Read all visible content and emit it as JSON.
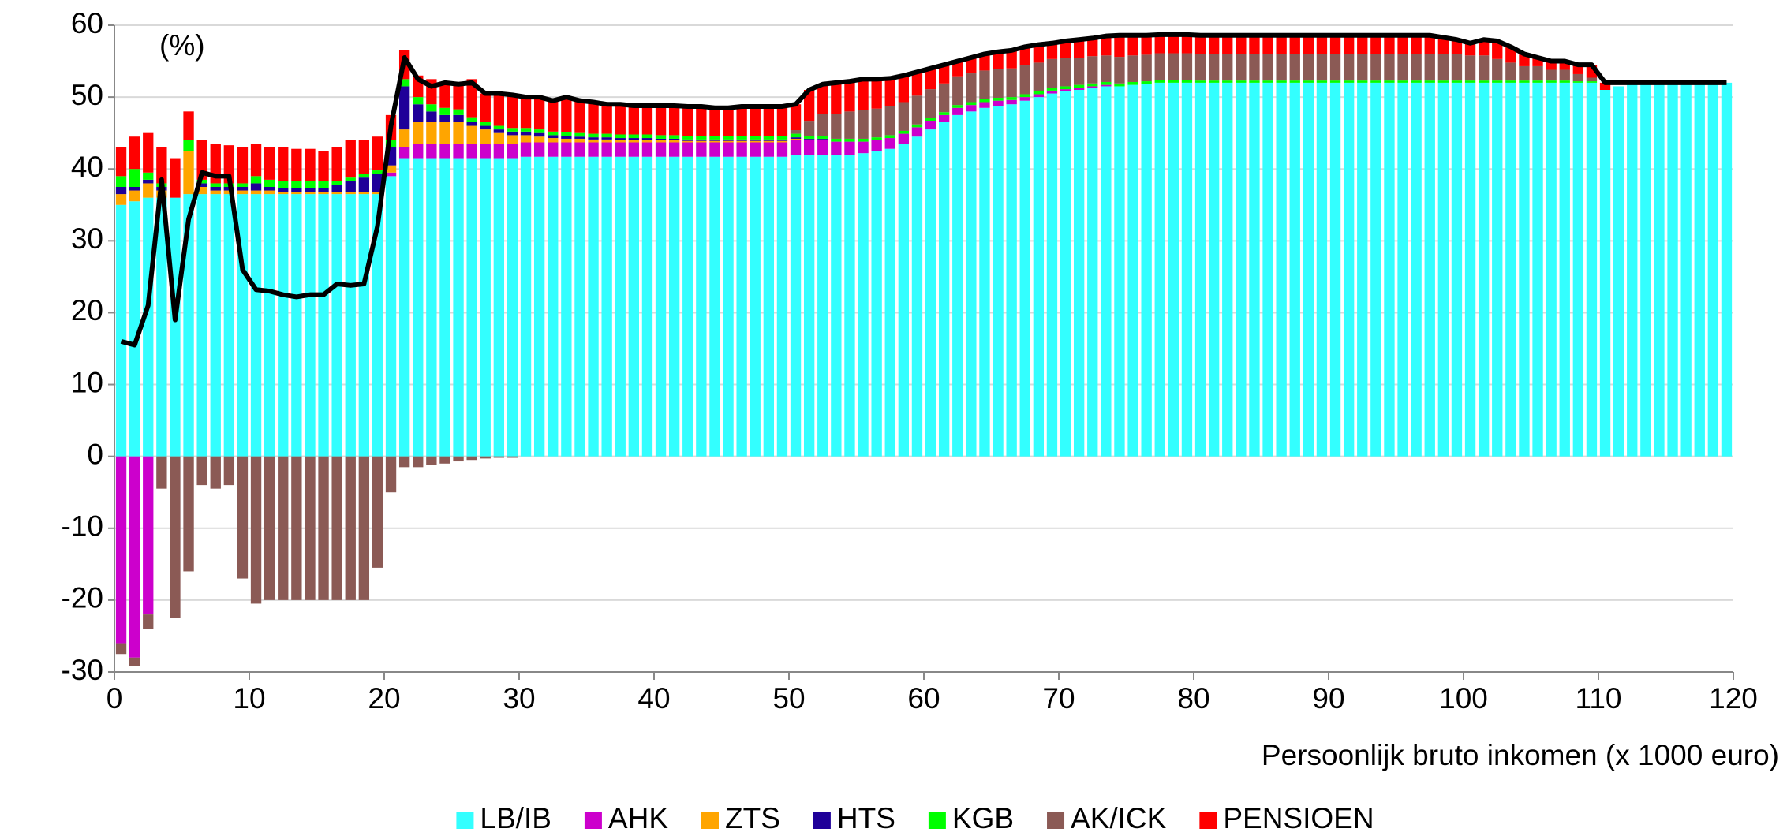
{
  "chart_data": {
    "type": "stacked_bar_line",
    "annotation": "(%)",
    "x_label": "Persoonlijk bruto inkomen (x 1000 euro)",
    "x": [
      0.5,
      1.5,
      2.5,
      3.5,
      4.5,
      5.5,
      6.5,
      7.5,
      8.5,
      9.5,
      10.5,
      11.5,
      12.5,
      13.5,
      14.5,
      15.5,
      16.5,
      17.5,
      18.5,
      19.5,
      20.5,
      21.5,
      22.5,
      23.5,
      24.5,
      25.5,
      26.5,
      27.5,
      28.5,
      29.5,
      30.5,
      31.5,
      32.5,
      33.5,
      34.5,
      35.5,
      36.5,
      37.5,
      38.5,
      39.5,
      40.5,
      41.5,
      42.5,
      43.5,
      44.5,
      45.5,
      46.5,
      47.5,
      48.5,
      49.5,
      50.5,
      51.5,
      52.5,
      53.5,
      54.5,
      55.5,
      56.5,
      57.5,
      58.5,
      59.5,
      60.5,
      61.5,
      62.5,
      63.5,
      64.5,
      65.5,
      66.5,
      67.5,
      68.5,
      69.5,
      70.5,
      71.5,
      72.5,
      73.5,
      74.5,
      75.5,
      76.5,
      77.5,
      78.5,
      79.5,
      80.5,
      81.5,
      82.5,
      83.5,
      84.5,
      85.5,
      86.5,
      87.5,
      88.5,
      89.5,
      90.5,
      91.5,
      92.5,
      93.5,
      94.5,
      95.5,
      96.5,
      97.5,
      98.5,
      99.5,
      100.5,
      101.5,
      102.5,
      103.5,
      104.5,
      105.5,
      106.5,
      107.5,
      108.5,
      109.5,
      110.5,
      111.5,
      112.5,
      113.5,
      114.5,
      115.5,
      116.5,
      117.5,
      118.5,
      119.5
    ],
    "series": [
      {
        "name": "LB/IB",
        "color": "#33ffff",
        "values": [
          35,
          35.5,
          36,
          36,
          36,
          36.5,
          36.5,
          36.5,
          36.5,
          36.5,
          36.5,
          36.5,
          36.5,
          36.5,
          36.5,
          36.5,
          36.5,
          36.5,
          36.5,
          36.5,
          39,
          41.5,
          41.5,
          41.5,
          41.5,
          41.5,
          41.5,
          41.5,
          41.5,
          41.5,
          41.7,
          41.7,
          41.7,
          41.7,
          41.7,
          41.7,
          41.7,
          41.7,
          41.7,
          41.7,
          41.7,
          41.7,
          41.7,
          41.7,
          41.7,
          41.7,
          41.7,
          41.7,
          41.7,
          41.7,
          42,
          42,
          42,
          42,
          42,
          42.2,
          42.5,
          42.8,
          43.5,
          44.5,
          45.5,
          46.5,
          47.5,
          48,
          48.5,
          48.8,
          49,
          49.5,
          50,
          50.5,
          50.8,
          51,
          51.3,
          51.5,
          51.5,
          51.7,
          51.8,
          52,
          52,
          52,
          52,
          52,
          52,
          52,
          52,
          52,
          52,
          52,
          52,
          52,
          52,
          52,
          52,
          52,
          52,
          52,
          52,
          52,
          52,
          52,
          52,
          52,
          52,
          52,
          52,
          52,
          52,
          52,
          52,
          52,
          51,
          51.5,
          51.8,
          52,
          52,
          52,
          52,
          52,
          52,
          52
        ]
      },
      {
        "name": "AHK",
        "color": "#cc00cc",
        "values": [
          -26,
          -28,
          -22,
          0,
          0,
          0,
          0,
          0,
          0,
          0,
          0,
          0,
          0,
          0,
          0,
          0,
          0,
          0,
          0,
          0,
          0.5,
          1.5,
          2,
          2,
          2,
          2,
          2,
          2,
          2,
          2,
          2,
          2,
          2,
          2,
          2,
          2,
          2,
          2,
          2,
          2,
          2,
          2,
          2,
          2,
          2,
          2,
          2,
          2,
          2,
          2,
          2,
          2,
          2,
          1.8,
          1.8,
          1.6,
          1.5,
          1.5,
          1.4,
          1.3,
          1.2,
          1,
          1,
          0.9,
          0.8,
          0.7,
          0.6,
          0.5,
          0.4,
          0.4,
          0.3,
          0.3,
          0.2,
          0.2,
          0,
          0,
          0,
          0,
          0,
          0,
          0,
          0,
          0,
          0,
          0,
          0,
          0,
          0,
          0,
          0,
          0,
          0,
          0,
          0,
          0,
          0,
          0,
          0,
          0,
          0,
          0,
          0,
          0,
          0,
          0,
          0,
          0,
          0,
          0,
          0,
          0,
          0,
          0,
          0,
          0,
          0,
          0,
          0,
          0,
          0
        ]
      },
      {
        "name": "ZTS",
        "color": "#ffa500",
        "values": [
          1.5,
          1.5,
          2,
          1,
          0,
          6,
          1,
          0.5,
          0.5,
          0.5,
          0.5,
          0.5,
          0.3,
          0.3,
          0.3,
          0.3,
          0.3,
          0.3,
          0.3,
          0.3,
          1,
          2.5,
          3,
          3,
          3,
          3,
          2.5,
          2,
          1.5,
          1.2,
          1,
          0.8,
          0.6,
          0.5,
          0.5,
          0.4,
          0.4,
          0.3,
          0.3,
          0.3,
          0.3,
          0.3,
          0.2,
          0.2,
          0.2,
          0.2,
          0.2,
          0.2,
          0.2,
          0.2,
          0.2,
          0.1,
          0.1,
          0,
          0,
          0,
          0,
          0,
          0,
          0,
          0,
          0,
          0,
          0,
          0,
          0,
          0,
          0,
          0,
          0,
          0,
          0,
          0,
          0,
          0,
          0,
          0,
          0,
          0,
          0,
          0,
          0,
          0,
          0,
          0,
          0,
          0,
          0,
          0,
          0,
          0,
          0,
          0,
          0,
          0,
          0,
          0,
          0,
          0,
          0,
          0,
          0,
          0,
          0,
          0,
          0,
          0,
          0,
          0,
          0,
          0,
          0,
          0,
          0,
          0,
          0,
          0,
          0,
          0,
          0
        ]
      },
      {
        "name": "HTS",
        "color": "#1f0099",
        "values": [
          1,
          0.5,
          0.5,
          0.5,
          0,
          0,
          0.5,
          0.5,
          0.5,
          0.5,
          1,
          0.5,
          0.5,
          0.5,
          0.5,
          0.5,
          1,
          1.5,
          2,
          2.5,
          2.5,
          6,
          2.5,
          1.5,
          1,
          1,
          0.5,
          0.5,
          0.5,
          0.5,
          0.5,
          0.5,
          0.4,
          0.4,
          0.3,
          0.3,
          0.3,
          0.3,
          0.3,
          0.3,
          0.2,
          0.2,
          0.2,
          0.2,
          0.2,
          0.2,
          0.2,
          0.2,
          0.2,
          0.2,
          0.2,
          0.1,
          0.1,
          0,
          0,
          0,
          0,
          0,
          0,
          0,
          0,
          0,
          0,
          0,
          0,
          0,
          0,
          0,
          0,
          0,
          0,
          0,
          0,
          0,
          0,
          0,
          0,
          0,
          0,
          0,
          0,
          0,
          0,
          0,
          0,
          0,
          0,
          0,
          0,
          0,
          0,
          0,
          0,
          0,
          0,
          0,
          0,
          0,
          0,
          0,
          0,
          0,
          0,
          0,
          0,
          0,
          0,
          0,
          0,
          0,
          0,
          0,
          0,
          0,
          0,
          0,
          0,
          0,
          0,
          0
        ]
      },
      {
        "name": "KGB",
        "color": "#00ff00",
        "values": [
          1.5,
          2.5,
          1,
          0.5,
          0,
          1.5,
          0.5,
          0.5,
          0.5,
          0.5,
          1,
          1,
          1,
          1,
          1,
          1,
          0.5,
          0.5,
          0.5,
          0.5,
          1,
          1,
          1,
          1,
          1,
          0.8,
          0.7,
          0.5,
          0.5,
          0.5,
          0.5,
          0.5,
          0.5,
          0.5,
          0.5,
          0.5,
          0.5,
          0.5,
          0.5,
          0.5,
          0.5,
          0.5,
          0.5,
          0.5,
          0.5,
          0.5,
          0.5,
          0.5,
          0.5,
          0.5,
          0.5,
          0.4,
          0.4,
          0.4,
          0.4,
          0.4,
          0.4,
          0.4,
          0.4,
          0.4,
          0.4,
          0.4,
          0.4,
          0.4,
          0.4,
          0.4,
          0.4,
          0.4,
          0.4,
          0.4,
          0.4,
          0.4,
          0.4,
          0.4,
          0.4,
          0.4,
          0.4,
          0.4,
          0.4,
          0.4,
          0.3,
          0.3,
          0.3,
          0.3,
          0.3,
          0.3,
          0.3,
          0.3,
          0.3,
          0.3,
          0.3,
          0.3,
          0.3,
          0.3,
          0.3,
          0.3,
          0.3,
          0.3,
          0.3,
          0.3,
          0.3,
          0.3,
          0.3,
          0.3,
          0.3,
          0.3,
          0.3,
          0.3,
          0.2,
          0.2,
          0,
          0,
          0,
          0,
          0,
          0,
          0,
          0,
          0,
          0
        ]
      },
      {
        "name": "AK/ICK",
        "color": "#8b5a55",
        "values": [
          -1.5,
          -1.2,
          -2,
          -4.5,
          -22.5,
          -16,
          -4,
          -4.5,
          -4,
          -17,
          -20.5,
          -20,
          -20,
          -20,
          -20,
          -20,
          -20,
          -20,
          -20,
          -15.5,
          -5,
          -1.5,
          -1.5,
          -1.2,
          -1,
          -0.7,
          -0.5,
          -0.3,
          -0.2,
          -0.2,
          0,
          0,
          0,
          0,
          0,
          0,
          0,
          0,
          0,
          0,
          0,
          0,
          0,
          0,
          0,
          0,
          0,
          0,
          0,
          0,
          0.5,
          2,
          3,
          3.5,
          3.8,
          4,
          4,
          4,
          4,
          4,
          4,
          4,
          4,
          4,
          4,
          4,
          4,
          4,
          4,
          4,
          4,
          3.8,
          3.8,
          3.7,
          3.7,
          3.7,
          3.7,
          3.7,
          3.7,
          3.7,
          3.7,
          3.7,
          3.7,
          3.7,
          3.7,
          3.7,
          3.7,
          3.7,
          3.7,
          3.7,
          3.7,
          3.7,
          3.7,
          3.7,
          3.7,
          3.7,
          3.7,
          3.7,
          3.7,
          3.7,
          3.5,
          3.5,
          3,
          2.5,
          2,
          2,
          1.5,
          1.5,
          1,
          0.5,
          0,
          0,
          0,
          0,
          0,
          0,
          0,
          0,
          0,
          0
        ]
      },
      {
        "name": "PENSIOEN",
        "color": "#ff0000",
        "values": [
          4,
          4.5,
          5.5,
          5,
          5.5,
          4,
          5.5,
          5.5,
          5.3,
          5,
          4.5,
          4.5,
          4.7,
          4.5,
          4.5,
          4.2,
          4.7,
          5.2,
          4.7,
          4.7,
          3.5,
          4,
          3,
          3.5,
          3.5,
          3.7,
          5.3,
          4,
          4.5,
          4.6,
          4.3,
          4.5,
          4.3,
          4.7,
          4.5,
          4.4,
          4.1,
          4.2,
          4,
          4,
          4.1,
          4.1,
          4.1,
          4.1,
          4.1,
          4.1,
          4.1,
          4.1,
          4.1,
          4.1,
          3.6,
          4.4,
          4.2,
          4.3,
          4.2,
          4.3,
          4.1,
          3.9,
          3.7,
          3.3,
          2.9,
          2.6,
          2.1,
          2.2,
          2.3,
          2.4,
          2.5,
          2.6,
          2.5,
          2.2,
          2.3,
          2.5,
          2.5,
          2.7,
          3,
          2.8,
          2.7,
          2.6,
          2.6,
          2.6,
          2.6,
          2.6,
          2.6,
          2.6,
          2.6,
          2.6,
          2.6,
          2.6,
          2.6,
          2.6,
          2.6,
          2.6,
          2.6,
          2.6,
          2.6,
          2.6,
          2.6,
          2.6,
          2.3,
          2,
          1.7,
          2.2,
          2.5,
          2.2,
          1.7,
          1.2,
          1.2,
          1.2,
          1.3,
          1.8,
          1,
          0,
          0,
          0,
          0,
          0,
          0,
          0,
          0,
          0
        ]
      }
    ],
    "line": {
      "color": "#000000",
      "values": [
        16,
        15.5,
        21,
        38.5,
        19,
        33,
        39.5,
        39,
        39,
        26,
        23.2,
        23,
        22.5,
        22.2,
        22.5,
        22.5,
        24,
        23.8,
        24,
        32,
        46,
        55.5,
        52.5,
        51.5,
        52,
        51.8,
        52,
        50.5,
        50.5,
        50.3,
        50,
        50,
        49.5,
        50,
        49.5,
        49.3,
        49,
        49,
        48.8,
        48.8,
        48.8,
        48.8,
        48.7,
        48.7,
        48.5,
        48.5,
        48.7,
        48.7,
        48.7,
        48.7,
        49,
        51,
        51.8,
        52,
        52.2,
        52.5,
        52.5,
        52.6,
        53,
        53.5,
        54,
        54.5,
        55,
        55.5,
        56,
        56.3,
        56.5,
        57,
        57.3,
        57.5,
        57.8,
        58,
        58.2,
        58.5,
        58.6,
        58.6,
        58.6,
        58.7,
        58.7,
        58.7,
        58.6,
        58.6,
        58.6,
        58.6,
        58.6,
        58.6,
        58.6,
        58.6,
        58.6,
        58.6,
        58.6,
        58.6,
        58.6,
        58.6,
        58.6,
        58.6,
        58.6,
        58.6,
        58.3,
        58,
        57.5,
        58,
        57.8,
        57,
        56,
        55.5,
        55,
        55,
        54.5,
        54.5,
        52,
        52,
        52,
        52,
        52,
        52,
        52,
        52,
        52,
        52
      ]
    },
    "xlim": [
      0,
      120
    ],
    "xticks": [
      0,
      10,
      20,
      30,
      40,
      50,
      60,
      70,
      80,
      90,
      100,
      110,
      120
    ],
    "ylim": [
      -30,
      60
    ],
    "yticks": [
      -30,
      -20,
      -10,
      0,
      10,
      20,
      30,
      40,
      50,
      60
    ],
    "grid": true
  }
}
